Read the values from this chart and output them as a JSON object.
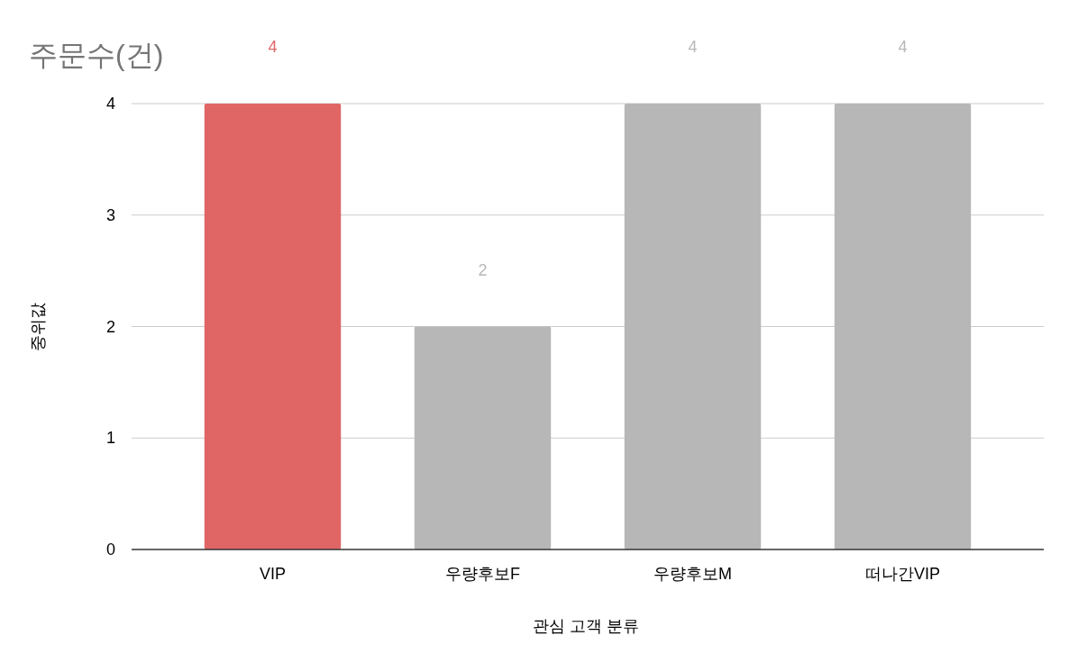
{
  "chart_data": {
    "type": "bar",
    "title": "주문수(건)",
    "xlabel": "관심 고객 분류",
    "ylabel": "중위값",
    "categories": [
      "VIP",
      "우량후보F",
      "우량후보M",
      "떠나간VIP"
    ],
    "values": [
      4,
      2,
      4,
      4
    ],
    "colors": [
      "#e06666",
      "#b7b7b7",
      "#b7b7b7",
      "#b7b7b7"
    ],
    "ylim": [
      0,
      4
    ],
    "yticks": [
      0,
      1,
      2,
      3,
      4
    ],
    "grid": "y",
    "data_labels": true
  }
}
